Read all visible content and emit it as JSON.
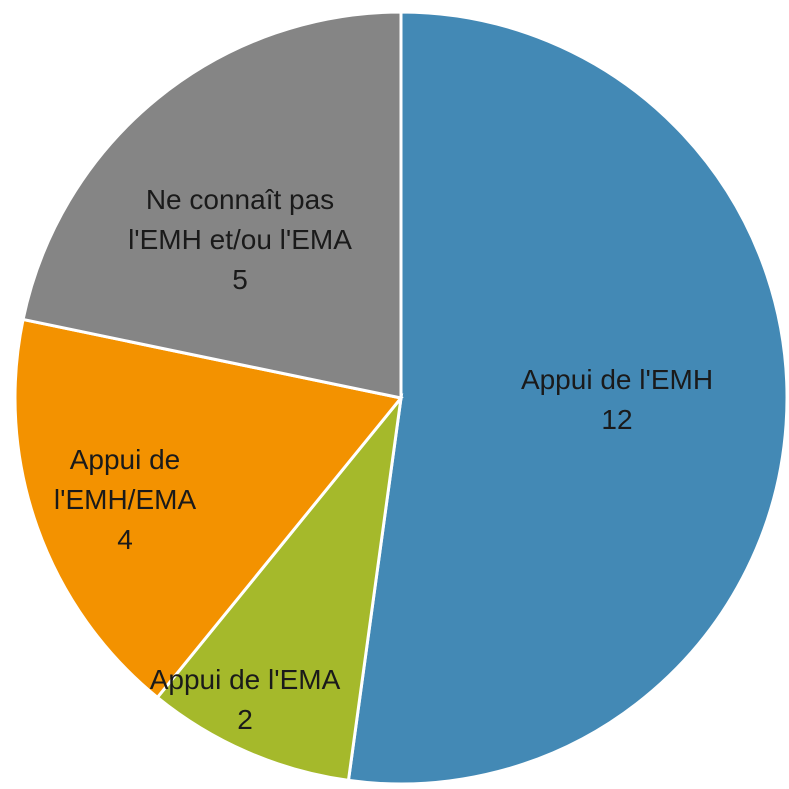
{
  "chart_data": {
    "type": "pie",
    "categories": [
      "Appui de l'EMH",
      "Appui de l'EMA",
      "Appui de l'EMH/EMA",
      "Ne connaît pas l'EMH et/ou l'EMA"
    ],
    "values": [
      12,
      2,
      4,
      5
    ],
    "colors": [
      "#4389b5",
      "#a5b92b",
      "#f39200",
      "#858585"
    ]
  }
}
